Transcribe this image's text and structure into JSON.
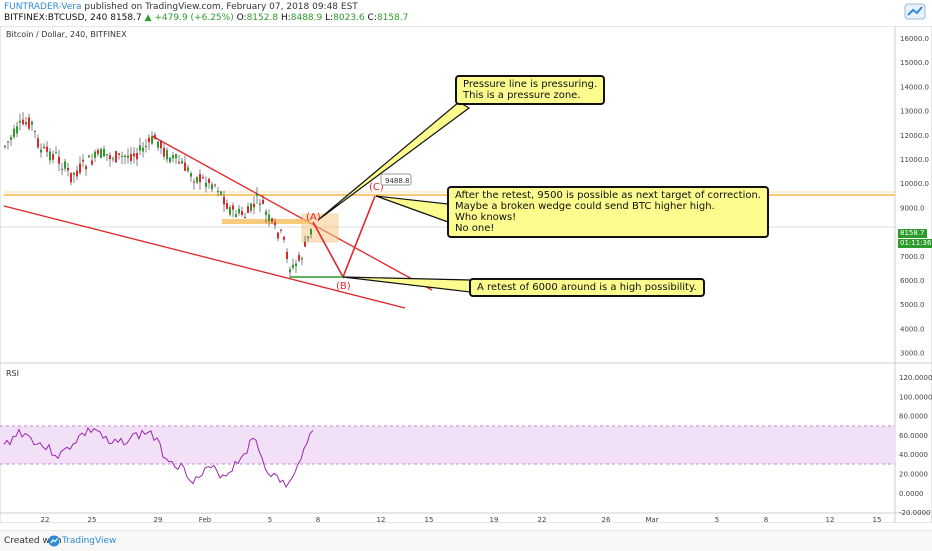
{
  "header": {
    "author": "FUNTRADER-Vera",
    "published": "published on TradingView.com, February 07, 2018 09:48 EST",
    "symbol": "BITFINEX:BTCUSD, 240",
    "price": "8158.7",
    "change": "+479.9 (+6.25%)",
    "o_label": "O:",
    "o": "8152.8",
    "h_label": "H:",
    "h": "8488.9",
    "l_label": "L:",
    "l": "8023.6",
    "c_label": "C:",
    "c": "8158.7"
  },
  "chart": {
    "title": "Bitcoin / Dollar, 240, BITFINEX",
    "price_axis": [
      "16000.0",
      "15000.0",
      "14000.0",
      "13000.0",
      "12000.0",
      "11000.0",
      "10000.0",
      "9000.0",
      "8000.0",
      "7000.0",
      "6000.0",
      "5000.0",
      "4000.0",
      "3000.0"
    ],
    "price_tag": "8158.7",
    "countdown_tag": "01:11:36",
    "c_target": "9488.8",
    "labels": {
      "a": "(A)",
      "b": "(B)",
      "c": "(C)"
    },
    "colors": {
      "red": "#e0262a",
      "orange": "#f5a623",
      "green": "#2b9c2b",
      "rsi": "#9c27b0"
    }
  },
  "notes": {
    "n1": "Pressure line is pressuring.\nThis is a pressure zone.",
    "n2": "After the retest, 9500 is possible as next target of correction.\nMaybe a broken wedge could send BTC higher high.\nWho knows!\nNo one!",
    "n3": "A retest of 6000 around is a high possibility."
  },
  "rsi": {
    "title": "RSI",
    "axis": [
      "120.0000",
      "100.0000",
      "80.0000",
      "60.0000",
      "40.0000",
      "20.0000",
      "0.0000",
      "-20.0000"
    ]
  },
  "time_axis": [
    "22",
    "25",
    "29",
    "Feb",
    "5",
    "8",
    "12",
    "15",
    "19",
    "22",
    "26",
    "Mar",
    "5",
    "8",
    "12",
    "15"
  ],
  "footer": {
    "created": "Created with",
    "brand": "TradingView"
  }
}
